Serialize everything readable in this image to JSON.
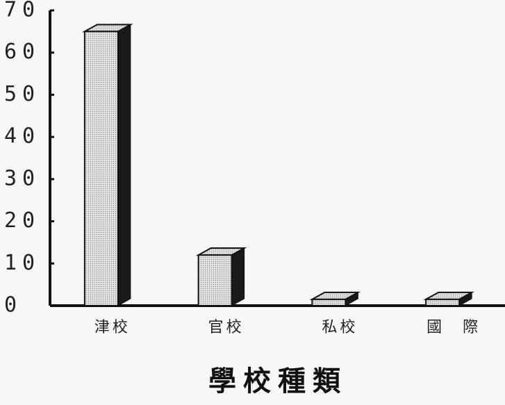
{
  "chart_data": {
    "type": "bar3d",
    "x_label": "學校種類",
    "categories": [
      "津校",
      "官校",
      "私校",
      "國　際"
    ],
    "values": [
      65,
      12,
      1.5,
      1.5
    ],
    "color": "#d9d9d9",
    "side_color": "#1a1a1a",
    "ylim": [
      0,
      70
    ],
    "yticks": [
      0,
      10,
      20,
      30,
      40,
      50,
      60,
      70
    ]
  }
}
